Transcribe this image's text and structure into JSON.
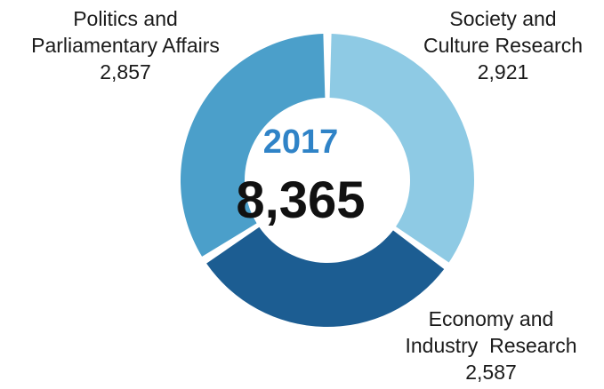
{
  "chart_data": {
    "type": "pie",
    "style": "donut",
    "center_year": "2017",
    "center_total": "8,365",
    "slices": [
      {
        "label_lines": [
          "Society and",
          "Culture Research"
        ],
        "value_text": "2,921",
        "value": 2921,
        "color": "#8ecae4"
      },
      {
        "label_lines": [
          "Economy and",
          "Industry  Research"
        ],
        "value_text": "2,587",
        "value": 2587,
        "color": "#1c5d92"
      },
      {
        "label_lines": [
          "Politics and",
          "Parliamentary Affairs"
        ],
        "value_text": "2,857",
        "value": 2857,
        "color": "#4b9fca"
      }
    ],
    "year_color": "#2f83c7"
  }
}
